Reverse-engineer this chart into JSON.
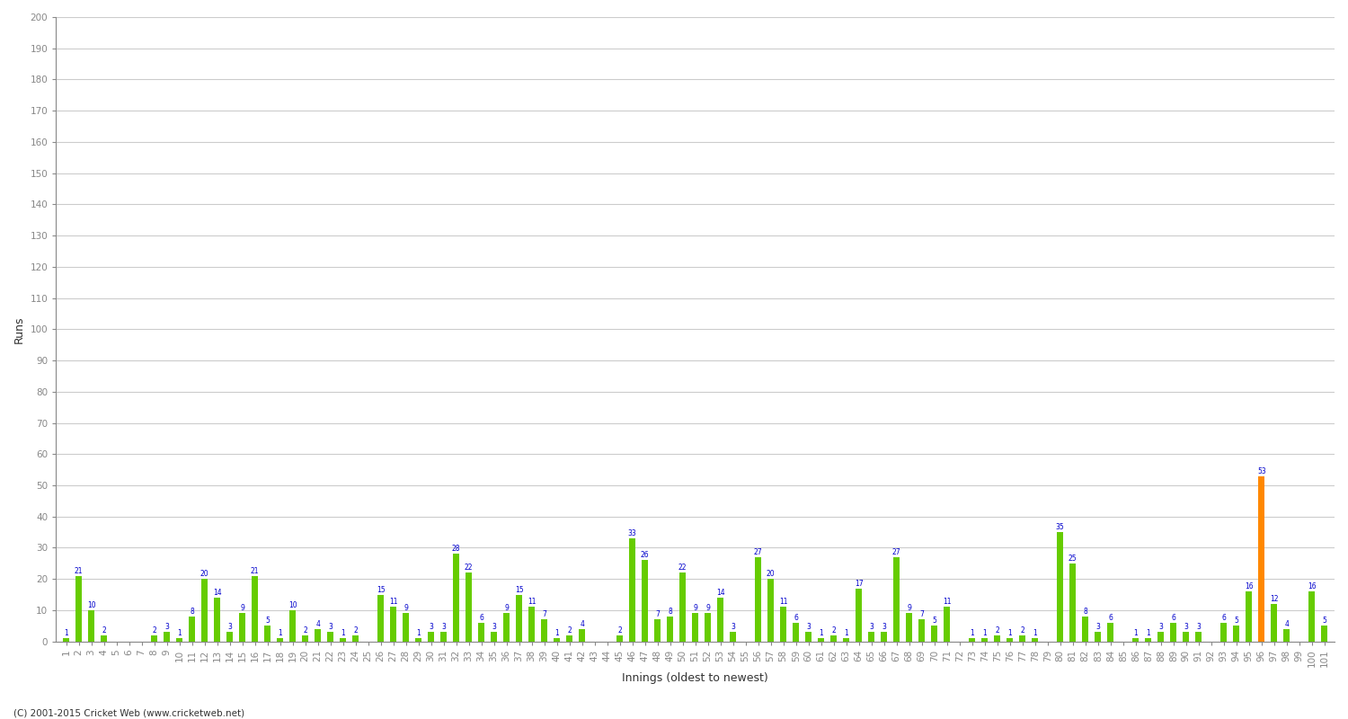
{
  "xlabel": "Innings (oldest to newest)",
  "ylabel": "Runs",
  "background_color": "#ffffff",
  "grid_color": "#cccccc",
  "bar_color_normal": "#66cc00",
  "bar_color_highlight": "#ff8800",
  "ylim": [
    0,
    200
  ],
  "yticks": [
    0,
    10,
    20,
    30,
    40,
    50,
    60,
    70,
    80,
    90,
    100,
    110,
    120,
    130,
    140,
    150,
    160,
    170,
    180,
    190,
    200
  ],
  "values": [
    1,
    21,
    10,
    2,
    0,
    0,
    0,
    2,
    3,
    1,
    8,
    20,
    14,
    3,
    9,
    21,
    5,
    1,
    10,
    2,
    4,
    3,
    1,
    2,
    0,
    15,
    11,
    9,
    1,
    3,
    3,
    28,
    22,
    6,
    3,
    9,
    15,
    11,
    7,
    1,
    2,
    4,
    0,
    0,
    2,
    33,
    26,
    7,
    8,
    22,
    9,
    9,
    14,
    3,
    0,
    27,
    20,
    11,
    6,
    3,
    1,
    2,
    1,
    17,
    3,
    3,
    27,
    9,
    7,
    5,
    11,
    0,
    1,
    1,
    2,
    1,
    2,
    1,
    0,
    35,
    25,
    8,
    3,
    6,
    0,
    1,
    1,
    3,
    6,
    3,
    3,
    0,
    6,
    5,
    16,
    53,
    12,
    4,
    0,
    16,
    5
  ],
  "highlight_index": 95,
  "innings_labels": [
    "1",
    "2",
    "3",
    "4",
    "5",
    "6",
    "7",
    "8",
    "9",
    "10",
    "11",
    "12",
    "13",
    "14",
    "15",
    "16",
    "17",
    "18",
    "19",
    "20",
    "21",
    "22",
    "23",
    "24",
    "25",
    "26",
    "27",
    "28",
    "29",
    "30",
    "31",
    "32",
    "33",
    "34",
    "35",
    "36",
    "37",
    "38",
    "39",
    "40",
    "41",
    "42",
    "43",
    "44",
    "45",
    "46",
    "47",
    "48",
    "49",
    "50",
    "51",
    "52",
    "53",
    "54",
    "55",
    "56",
    "57",
    "58",
    "59",
    "60",
    "61",
    "62",
    "63",
    "64",
    "65",
    "66",
    "67",
    "68",
    "69",
    "70",
    "71",
    "72",
    "73",
    "74",
    "75",
    "76",
    "77",
    "78",
    "79",
    "80",
    "81",
    "82",
    "83",
    "84",
    "85",
    "86",
    "87",
    "88",
    "89",
    "90",
    "91",
    "92",
    "93",
    "94",
    "95",
    "96",
    "97",
    "98",
    "99",
    "100",
    "101"
  ],
  "copyright": "(C) 2001-2015 Cricket Web (www.cricketweb.net)"
}
